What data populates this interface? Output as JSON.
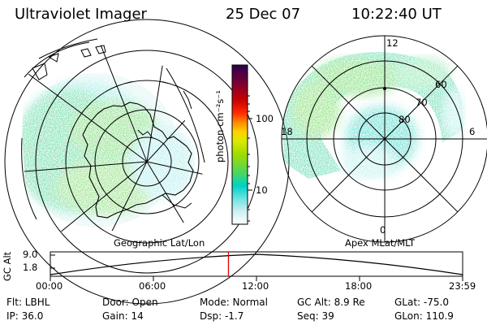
{
  "header": {
    "instrument": "Ultraviolet Imager",
    "date": "25 Dec 07",
    "time": "10:22:40 UT"
  },
  "colorbar": {
    "label": "photon cm⁻²s⁻¹",
    "ticks": [
      "100",
      "10"
    ],
    "colors": [
      "#ffffff",
      "#d0f0f0",
      "#6fe3e3",
      "#00d2c6",
      "#5ad64e",
      "#a0dc00",
      "#d8ea00",
      "#ffd200",
      "#ff8a00",
      "#ff2a00",
      "#c80000",
      "#800030",
      "#2a0050"
    ]
  },
  "geo_map": {
    "caption": "Geographic Lat/Lon"
  },
  "mag_map": {
    "caption": "Apex MLat/MLT",
    "mlt_labels": {
      "top": "12",
      "left": "18",
      "right": "6",
      "bottom": "0"
    },
    "lat_labels": [
      "60",
      "70",
      "80"
    ]
  },
  "timeline": {
    "y_axis_label": "GC Alt",
    "y_ticks": [
      "9.0",
      "1.8"
    ],
    "x_ticks": [
      "00:00",
      "06:00",
      "12:00",
      "18:00",
      "23:59"
    ],
    "current_fraction": 0.432,
    "marker_color": "#e00000"
  },
  "info": {
    "filter": "Flt: LBHL",
    "ip": "IP: 36.0",
    "door": "Door: Open",
    "gain": "Gain: 14",
    "mode": "Mode: Normal",
    "dsp": "Dsp:   -1.7",
    "gc_alt": "GC Alt: 8.9 Re",
    "seq": "Seq: 39",
    "glat": "GLat: -75.0",
    "glon": "GLon: 110.9"
  }
}
